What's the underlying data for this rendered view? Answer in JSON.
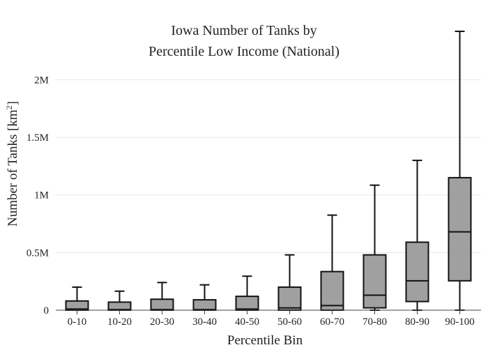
{
  "chart_data": {
    "type": "box",
    "title_lines": [
      "Iowa Number of Tanks by",
      "Percentile Low Income (National)"
    ],
    "xlabel": "Percentile Bin",
    "ylabel_main": "Number of Tanks  [km",
    "ylabel_sup": "2",
    "ylabel_close": "]",
    "ylim": [
      0,
      2450000
    ],
    "y_ticks": [
      {
        "value": 0,
        "label": "0"
      },
      {
        "value": 500000,
        "label": "0.5M"
      },
      {
        "value": 1000000,
        "label": "1M"
      },
      {
        "value": 1500000,
        "label": "1.5M"
      },
      {
        "value": 2000000,
        "label": "2M"
      }
    ],
    "grid": true,
    "box_fill": "#a0a0a0",
    "box_stroke": "#111111",
    "categories": [
      "0-10",
      "10-20",
      "20-30",
      "30-40",
      "40-50",
      "50-60",
      "60-70",
      "70-80",
      "80-90",
      "90-100"
    ],
    "boxes": [
      {
        "min": 0,
        "q1": 0,
        "median": 10000,
        "q3": 80000,
        "max": 200000
      },
      {
        "min": 0,
        "q1": 0,
        "median": 5000,
        "q3": 70000,
        "max": 165000
      },
      {
        "min": 0,
        "q1": 0,
        "median": 5000,
        "q3": 95000,
        "max": 240000
      },
      {
        "min": 0,
        "q1": 0,
        "median": 5000,
        "q3": 90000,
        "max": 220000
      },
      {
        "min": 0,
        "q1": 0,
        "median": 10000,
        "q3": 120000,
        "max": 295000
      },
      {
        "min": 0,
        "q1": 0,
        "median": 20000,
        "q3": 200000,
        "max": 480000
      },
      {
        "min": 0,
        "q1": 0,
        "median": 40000,
        "q3": 335000,
        "max": 825000
      },
      {
        "min": 0,
        "q1": 20000,
        "median": 130000,
        "q3": 480000,
        "max": 1085000
      },
      {
        "min": 0,
        "q1": 75000,
        "median": 255000,
        "q3": 590000,
        "max": 1300000
      },
      {
        "min": 0,
        "q1": 255000,
        "median": 680000,
        "q3": 1150000,
        "max": 2420000
      }
    ]
  }
}
